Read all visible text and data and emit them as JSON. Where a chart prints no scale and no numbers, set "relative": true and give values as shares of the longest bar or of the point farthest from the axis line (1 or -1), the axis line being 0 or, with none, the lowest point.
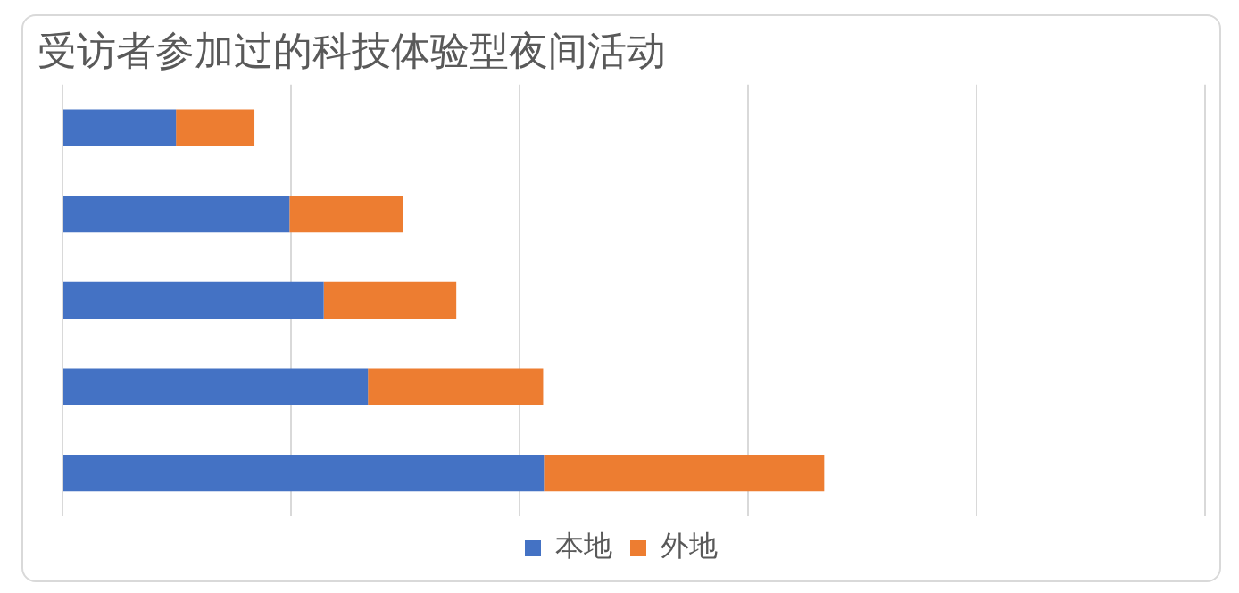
{
  "chart_data": {
    "type": "bar",
    "title": "受访者参加过的科技体验型夜间活动",
    "orientation": "horizontal",
    "stacked": true,
    "relative": true,
    "grid": "x",
    "legend": "bottom",
    "categories": [
      null,
      null,
      null,
      null,
      null
    ],
    "series": [
      {
        "name": "本地",
        "color": "#4472c4",
        "values": [
          0.149,
          0.298,
          0.343,
          0.401,
          0.632
        ]
      },
      {
        "name": "外地",
        "color": "#ed7d31",
        "values": [
          0.103,
          0.149,
          0.174,
          0.23,
          0.368
        ]
      }
    ]
  }
}
